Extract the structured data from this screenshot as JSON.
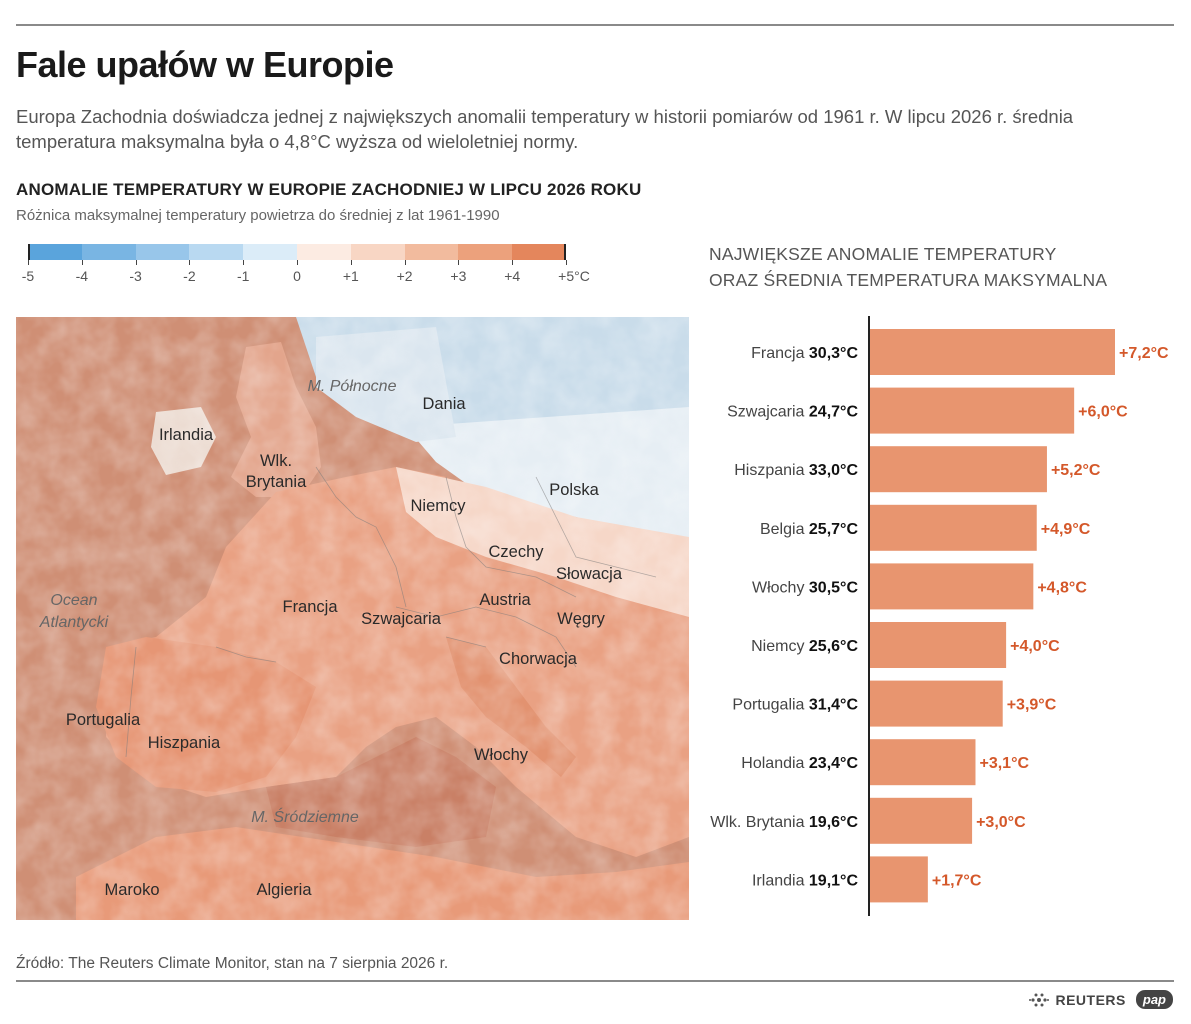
{
  "header": {
    "title": "Fale upałów w Europie",
    "lead": "Europa Zachodnia doświadcza jednej z największych anomalii temperatury w historii pomiarów od 1961 r. W lipcu 2026 r. średnia temperatura maksymalna była o 4,8°C wyższa od wieloletniej normy."
  },
  "map": {
    "title": "ANOMALIE TEMPERATURY W EUROPIE ZACHODNIEJ W LIPCU 2026 ROKU",
    "subtitle": "Różnica maksymalnej temperatury powietrza do średniej z lat 1961-1990",
    "scale": {
      "labels": [
        "-5",
        "-4",
        "-3",
        "-2",
        "-1",
        "0",
        "+1",
        "+2",
        "+3",
        "+4",
        "+5°C"
      ],
      "colors": [
        "#5aa4dc",
        "#79b5e3",
        "#98c6ea",
        "#b9d9f1",
        "#dbecf8",
        "#fcebe2",
        "#f8d6c4",
        "#f2bb9e",
        "#eca17c",
        "#e4865c"
      ]
    },
    "countries": [
      "Irlandia",
      "Wlk. Brytania",
      "Dania",
      "Niemcy",
      "Polska",
      "Czechy",
      "Słowacja",
      "Francja",
      "Szwajcaria",
      "Austria",
      "Węgry",
      "Chorwacja",
      "Portugalia",
      "Hiszpania",
      "Włochy",
      "Maroko",
      "Algieria"
    ],
    "seas": {
      "north": "M. Północne",
      "atlantic_1": "Ocean",
      "atlantic_2": "Atlantycki",
      "med": "M. Śródziemne"
    }
  },
  "bars": {
    "title_line1": "NAJWIĘKSZE ANOMALIE TEMPERATURY",
    "title_line2": "ORAZ ŚREDNIA TEMPERATURA MAKSYMALNA"
  },
  "chart_data": {
    "type": "bar",
    "orientation": "horizontal",
    "title": "NAJWIĘKSZE ANOMALIE TEMPERATURY ORAZ ŚREDNIA TEMPERATURA MAKSYMALNA",
    "categories": [
      "Francja",
      "Szwajcaria",
      "Hiszpania",
      "Belgia",
      "Włochy",
      "Niemcy",
      "Portugalia",
      "Holandia",
      "Wlk. Brytania",
      "Irlandia"
    ],
    "mean_max_temp": [
      "30,3°C",
      "24,7°C",
      "33,0°C",
      "25,7°C",
      "30,5°C",
      "25,6°C",
      "31,4°C",
      "23,4°C",
      "19,6°C",
      "19,1°C"
    ],
    "values": [
      7.2,
      6.0,
      5.2,
      4.9,
      4.8,
      4.0,
      3.9,
      3.1,
      3.0,
      1.7
    ],
    "value_labels": [
      "+7,2°C",
      "+6,0°C",
      "+5,2°C",
      "+4,9°C",
      "+4,8°C",
      "+4,0°C",
      "+3,9°C",
      "+3,1°C",
      "+3,0°C",
      "+1,7°C"
    ],
    "xlim": [
      0,
      7.2
    ],
    "bar_color": "#e8956f",
    "label_color": "#d4582a"
  },
  "footer": {
    "source": "Źródło: The Reuters Climate Monitor, stan na 7 sierpnia 2026 r.",
    "reuters": "REUTERS",
    "pap": "pap"
  }
}
